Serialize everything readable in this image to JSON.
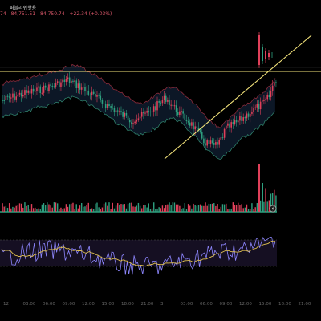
{
  "header": {
    "title": "퍼블리쉬핫용",
    "ohlc": {
      "open": "74",
      "high": "84,751.51",
      "close": "84,750.74",
      "change": "+22.34 (+0.03%)"
    }
  },
  "colors": {
    "up": "#e0405a",
    "down": "#2e9f7f",
    "background": "#000000",
    "trendline": "#f2e27a",
    "band": "#8a2a3a",
    "rsi_line": "#8e87ff",
    "rsi_ma": "#e0c04f"
  },
  "icons": {
    "volume_badge": "flash-icon"
  },
  "xaxis": {
    "ticks": [
      "12",
      "03:00",
      "06:00",
      "09:00",
      "12:00",
      "15:00",
      "18:00",
      "21:00",
      "3",
      "03:00",
      "06:00",
      "09:00",
      "12:00",
      "15:00",
      "18:00",
      "21:00"
    ]
  }
}
